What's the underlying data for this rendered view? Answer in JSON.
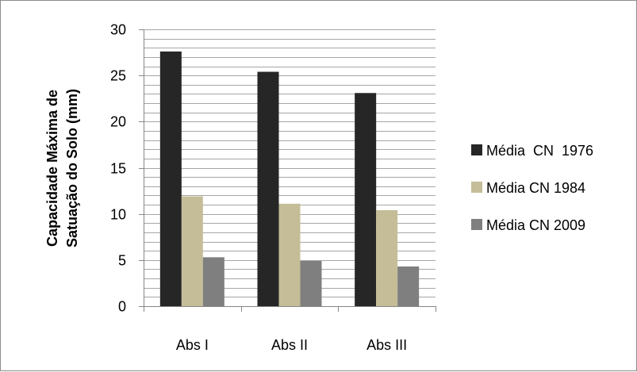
{
  "chart_data": {
    "type": "bar",
    "title": "",
    "xlabel": "",
    "ylabel_lines": [
      "Capacidade Máxima de",
      "Satuação do Solo (mm)"
    ],
    "categories": [
      "Abs I",
      "Abs II",
      "Abs III"
    ],
    "series": [
      {
        "name": "Média  CN  1976",
        "color": "#262626",
        "values": [
          27.6,
          25.4,
          23.1
        ]
      },
      {
        "name": "Média CN 1984",
        "color": "#c4bd97",
        "values": [
          11.9,
          11.1,
          10.4
        ]
      },
      {
        "name": "Média CN 2009",
        "color": "#7f7f7f",
        "values": [
          5.3,
          4.9,
          4.3
        ]
      }
    ],
    "ylim": [
      0,
      30
    ],
    "yticks": [
      0,
      5,
      10,
      15,
      20,
      25,
      30
    ],
    "minor_step": 1,
    "grid": true,
    "legend_position": "right"
  }
}
